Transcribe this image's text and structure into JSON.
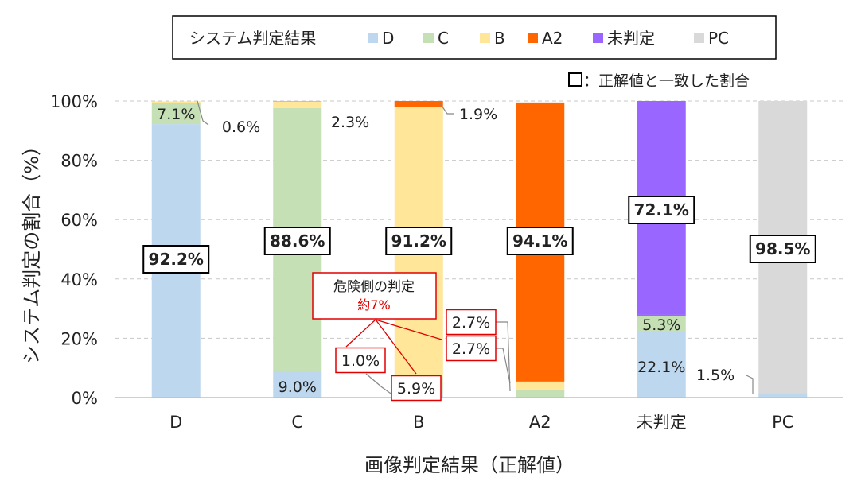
{
  "chart_data": {
    "type": "bar",
    "stacked": true,
    "xlabel": "画像判定結果（正解値）",
    "ylabel": "システム判定の割合（%）",
    "ylim": [
      0,
      100
    ],
    "y_ticks": [
      "0%",
      "20%",
      "40%",
      "60%",
      "80%",
      "100%"
    ],
    "grid": true,
    "categories": [
      "D",
      "C",
      "B",
      "A2",
      "未判定",
      "PC"
    ],
    "legend": {
      "title": "システム判定結果",
      "placement": "top",
      "entries": [
        "D",
        "C",
        "B",
        "A2",
        "未判定",
        "PC"
      ]
    },
    "legend_note": "：正解値と一致した割合",
    "series": [
      {
        "name": "D",
        "color": "#BDD7EE",
        "values": [
          92.2,
          9.0,
          1.0,
          0,
          22.1,
          1.5
        ]
      },
      {
        "name": "C",
        "color": "#C5E0B4",
        "values": [
          7.1,
          88.6,
          5.9,
          2.7,
          5.3,
          0
        ]
      },
      {
        "name": "B",
        "color": "#FFE699",
        "values": [
          0.6,
          2.3,
          91.2,
          2.7,
          0,
          0
        ]
      },
      {
        "name": "A2",
        "color": "#FF6600",
        "values": [
          0,
          0.1,
          1.9,
          94.1,
          0.5,
          0
        ]
      },
      {
        "name": "未判定",
        "color": "#9966FF",
        "values": [
          0,
          0,
          0,
          0,
          72.1,
          0
        ]
      },
      {
        "name": "PC",
        "color": "#D9D9D9",
        "values": [
          0,
          0,
          0,
          0,
          0,
          98.5
        ]
      }
    ],
    "data_labels": [
      "92.2%",
      "88.6%",
      "91.2%",
      "94.1%",
      "72.1%",
      "98.5%",
      "7.1%",
      "0.6%",
      "9.0%",
      "2.3%",
      "1.9%",
      "1.0%",
      "5.9%",
      "2.7%",
      "2.7%",
      "5.3%",
      "22.1%",
      "1.5%"
    ],
    "annotation": {
      "title": "危険側の判定",
      "value": "約7%"
    }
  }
}
